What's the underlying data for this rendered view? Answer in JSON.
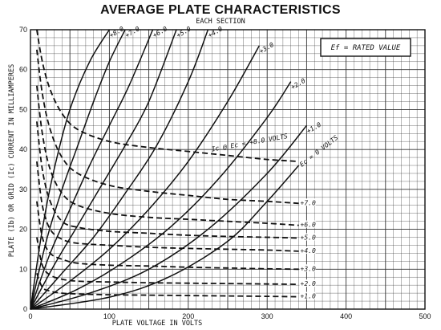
{
  "chart_data": {
    "type": "line",
    "title": "AVERAGE PLATE CHARACTERISTICS",
    "subtitle": "EACH SECTION",
    "xlabel": "PLATE VOLTAGE IN VOLTS",
    "ylabel": "PLATE (Ib) OR GRID (Ic) CURRENT IN MILLIAMPERES",
    "xlim": [
      0,
      500
    ],
    "ylim": [
      0,
      70
    ],
    "x_ticks": [
      "0",
      "100",
      "200",
      "300",
      "400",
      "500"
    ],
    "y_ticks": [
      "0",
      "10",
      "20",
      "30",
      "40",
      "50",
      "60",
      "70"
    ],
    "grid": true,
    "legend_box": "Ef = RATED VALUE",
    "plate_curves": [
      {
        "label": "+8.0",
        "x": [
          0,
          15,
          30,
          50,
          75,
          100
        ],
        "y": [
          0,
          20,
          35,
          50,
          62,
          70
        ]
      },
      {
        "label": "+7.0",
        "x": [
          0,
          20,
          40,
          60,
          80,
          100,
          120
        ],
        "y": [
          0,
          17,
          30,
          41,
          52,
          62,
          70
        ]
      },
      {
        "label": "+6.0",
        "x": [
          0,
          25,
          50,
          75,
          100,
          125,
          155
        ],
        "y": [
          0,
          14,
          25,
          36,
          46,
          56,
          70
        ]
      },
      {
        "label": "+5.0",
        "x": [
          0,
          30,
          60,
          90,
          120,
          150,
          185
        ],
        "y": [
          0,
          11,
          21,
          31,
          41,
          52,
          70
        ]
      },
      {
        "label": "+4.0",
        "x": [
          0,
          40,
          80,
          120,
          160,
          200,
          225
        ],
        "y": [
          0,
          9,
          18,
          29,
          41,
          57,
          70
        ]
      },
      {
        "label": "+3.0",
        "x": [
          0,
          50,
          100,
          150,
          200,
          250,
          290
        ],
        "y": [
          0,
          7,
          15,
          25,
          37,
          52,
          66
        ]
      },
      {
        "label": "+2.0",
        "x": [
          0,
          60,
          120,
          180,
          240,
          300,
          330
        ],
        "y": [
          0,
          5,
          12,
          21,
          33,
          48,
          57
        ]
      },
      {
        "label": "+1.0",
        "x": [
          0,
          75,
          150,
          225,
          300,
          350
        ],
        "y": [
          0,
          4,
          10,
          20,
          34,
          46
        ]
      },
      {
        "label": "Ec = 0 VOLTS",
        "x": [
          0,
          100,
          175,
          250,
          300,
          340
        ],
        "y": [
          0,
          3,
          8,
          17,
          27,
          36
        ]
      }
    ],
    "grid_curves": [
      {
        "label": "Ic @ Ec = +8.0 VOLTS",
        "x": [
          8,
          15,
          25,
          40,
          60,
          100,
          150,
          200,
          250,
          300,
          340
        ],
        "y": [
          70,
          62,
          55,
          49,
          45,
          42,
          40.5,
          39.5,
          38.5,
          37.5,
          37
        ]
      },
      {
        "label": "+7.0",
        "x": [
          8,
          15,
          25,
          40,
          60,
          100,
          150,
          200,
          250,
          300,
          340
        ],
        "y": [
          65,
          54,
          45,
          38,
          34,
          31,
          29.5,
          28.5,
          27.5,
          27,
          26.5
        ]
      },
      {
        "label": "+6.0",
        "x": [
          8,
          15,
          25,
          40,
          60,
          100,
          150,
          200,
          250,
          300,
          340
        ],
        "y": [
          56,
          44,
          35,
          29,
          26,
          24,
          23,
          22.5,
          22,
          21.5,
          21
        ]
      },
      {
        "label": "+5.0",
        "x": [
          8,
          15,
          25,
          40,
          60,
          100,
          150,
          200,
          250,
          300,
          340
        ],
        "y": [
          47,
          35,
          27,
          22,
          20.5,
          19.5,
          19,
          18.5,
          18.2,
          18,
          17.8
        ]
      },
      {
        "label": "+4.0",
        "x": [
          8,
          15,
          25,
          40,
          60,
          100,
          150,
          200,
          250,
          300,
          340
        ],
        "y": [
          37,
          26,
          20,
          17.5,
          16.5,
          16,
          15.5,
          15.2,
          15,
          14.8,
          14.5
        ]
      },
      {
        "label": "+3.0",
        "x": [
          8,
          15,
          25,
          40,
          60,
          100,
          150,
          200,
          250,
          300,
          340
        ],
        "y": [
          27,
          18,
          14,
          12.5,
          11.5,
          11,
          10.8,
          10.5,
          10.3,
          10.1,
          10
        ]
      },
      {
        "label": "+2.0",
        "x": [
          8,
          15,
          25,
          40,
          60,
          100,
          150,
          200,
          250,
          300,
          340
        ],
        "y": [
          18,
          11,
          8.5,
          7.5,
          7,
          6.8,
          6.6,
          6.5,
          6.4,
          6.3,
          6.2
        ]
      },
      {
        "label": "+1.0",
        "x": [
          8,
          15,
          25,
          40,
          60,
          100,
          150,
          200,
          250,
          300,
          340
        ],
        "y": [
          9,
          5.5,
          4.5,
          4,
          3.8,
          3.6,
          3.5,
          3.4,
          3.3,
          3.2,
          3.1
        ]
      }
    ]
  }
}
